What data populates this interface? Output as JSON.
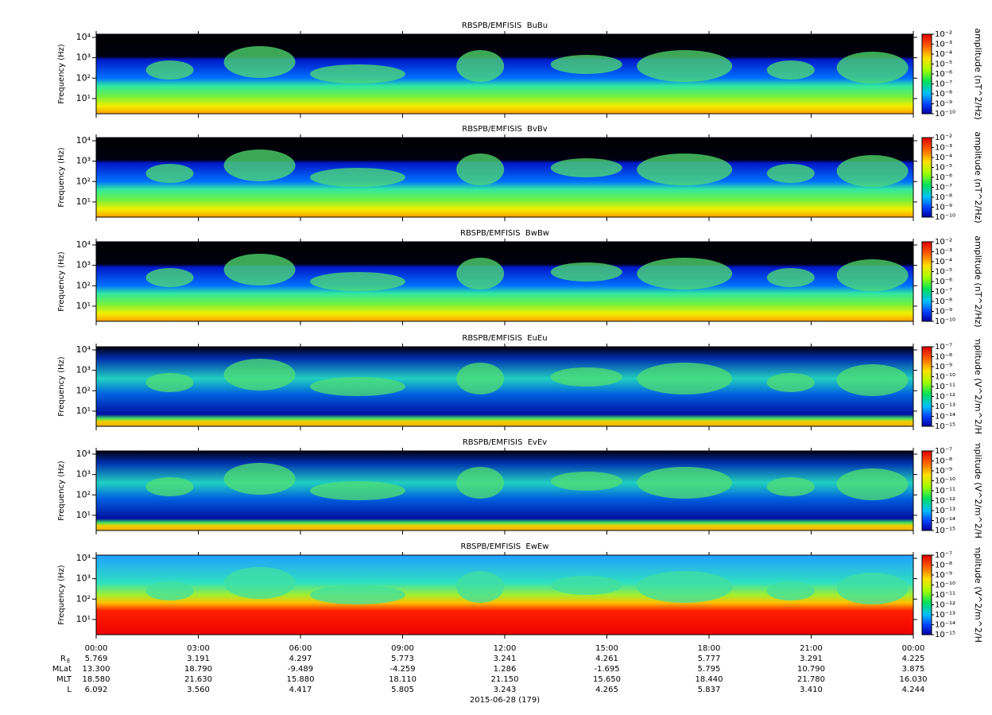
{
  "chart_data": [
    {
      "type": "spectrogram",
      "title": "RBSPB/EMFISIS  BuBu",
      "ylabel": "Frequency (Hz)",
      "yscale": "log",
      "ylim": [
        1.8,
        14300
      ],
      "yticks": [
        {
          "value": 10,
          "label": "10¹"
        },
        {
          "value": 100,
          "label": "10²"
        },
        {
          "value": 1000,
          "label": "10³"
        },
        {
          "value": 10000,
          "label": "10⁴"
        }
      ],
      "colorbar": {
        "label": "amplitude (nT^2/Hz)",
        "zscale": "log",
        "zlim": [
          1e-10,
          0.01
        ],
        "zticks": [
          {
            "value": 0.01,
            "label": "10⁻²"
          },
          {
            "value": 0.001,
            "label": "10⁻³"
          },
          {
            "value": 0.0001,
            "label": "10⁻⁴"
          },
          {
            "value": 1e-05,
            "label": "10⁻⁵"
          },
          {
            "value": 1e-06,
            "label": "10⁻⁶"
          },
          {
            "value": 1e-07,
            "label": "10⁻⁷"
          },
          {
            "value": 1e-08,
            "label": "10⁻⁸"
          },
          {
            "value": 1e-09,
            "label": "10⁻⁹"
          },
          {
            "value": 1e-10,
            "label": "10⁻¹⁰"
          }
        ]
      }
    },
    {
      "type": "spectrogram",
      "title": "RBSPB/EMFISIS  BvBv",
      "ylabel": "Frequency (Hz)",
      "yscale": "log",
      "ylim": [
        1.8,
        14300
      ],
      "yticks": [
        {
          "value": 10,
          "label": "10¹"
        },
        {
          "value": 100,
          "label": "10²"
        },
        {
          "value": 1000,
          "label": "10³"
        },
        {
          "value": 10000,
          "label": "10⁴"
        }
      ],
      "colorbar": {
        "label": "amplitude (nT^2/Hz)",
        "zscale": "log",
        "zlim": [
          1e-10,
          0.01
        ],
        "zticks": [
          {
            "value": 0.01,
            "label": "10⁻²"
          },
          {
            "value": 0.001,
            "label": "10⁻³"
          },
          {
            "value": 0.0001,
            "label": "10⁻⁴"
          },
          {
            "value": 1e-05,
            "label": "10⁻⁵"
          },
          {
            "value": 1e-06,
            "label": "10⁻⁶"
          },
          {
            "value": 1e-07,
            "label": "10⁻⁷"
          },
          {
            "value": 1e-08,
            "label": "10⁻⁸"
          },
          {
            "value": 1e-09,
            "label": "10⁻⁹"
          },
          {
            "value": 1e-10,
            "label": "10⁻¹⁰"
          }
        ]
      }
    },
    {
      "type": "spectrogram",
      "title": "RBSPB/EMFISIS  BwBw",
      "ylabel": "Frequency (Hz)",
      "yscale": "log",
      "ylim": [
        1.8,
        14300
      ],
      "yticks": [
        {
          "value": 10,
          "label": "10¹"
        },
        {
          "value": 100,
          "label": "10²"
        },
        {
          "value": 1000,
          "label": "10³"
        },
        {
          "value": 10000,
          "label": "10⁴"
        }
      ],
      "colorbar": {
        "label": "amplitude (nT^2/Hz)",
        "zscale": "log",
        "zlim": [
          1e-10,
          0.01
        ],
        "zticks": [
          {
            "value": 0.01,
            "label": "10⁻²"
          },
          {
            "value": 0.001,
            "label": "10⁻³"
          },
          {
            "value": 0.0001,
            "label": "10⁻⁴"
          },
          {
            "value": 1e-05,
            "label": "10⁻⁵"
          },
          {
            "value": 1e-06,
            "label": "10⁻⁶"
          },
          {
            "value": 1e-07,
            "label": "10⁻⁷"
          },
          {
            "value": 1e-08,
            "label": "10⁻⁸"
          },
          {
            "value": 1e-09,
            "label": "10⁻⁹"
          },
          {
            "value": 1e-10,
            "label": "10⁻¹⁰"
          }
        ]
      }
    },
    {
      "type": "spectrogram",
      "title": "RBSPB/EMFISIS  EuEu",
      "ylabel": "Frequency (Hz)",
      "yscale": "log",
      "ylim": [
        1.8,
        14300
      ],
      "yticks": [
        {
          "value": 10,
          "label": "10¹"
        },
        {
          "value": 100,
          "label": "10²"
        },
        {
          "value": 1000,
          "label": "10³"
        },
        {
          "value": 10000,
          "label": "10⁴"
        }
      ],
      "colorbar": {
        "label": "amplitude (V^2/m^2/Hz)",
        "zscale": "log",
        "zlim": [
          1e-15,
          1e-07
        ],
        "zticks": [
          {
            "value": 1e-07,
            "label": "10⁻⁷"
          },
          {
            "value": 1e-08,
            "label": "10⁻⁸"
          },
          {
            "value": 1e-09,
            "label": "10⁻⁹"
          },
          {
            "value": 1e-10,
            "label": "10⁻¹⁰"
          },
          {
            "value": 1e-11,
            "label": "10⁻¹¹"
          },
          {
            "value": 1e-12,
            "label": "10⁻¹²"
          },
          {
            "value": 1e-13,
            "label": "10⁻¹³"
          },
          {
            "value": 1e-14,
            "label": "10⁻¹⁴"
          },
          {
            "value": 1e-15,
            "label": "10⁻¹⁵"
          }
        ]
      }
    },
    {
      "type": "spectrogram",
      "title": "RBSPB/EMFISIS  EvEv",
      "ylabel": "Frequency (Hz)",
      "yscale": "log",
      "ylim": [
        1.8,
        14300
      ],
      "yticks": [
        {
          "value": 10,
          "label": "10¹"
        },
        {
          "value": 100,
          "label": "10²"
        },
        {
          "value": 1000,
          "label": "10³"
        },
        {
          "value": 10000,
          "label": "10⁴"
        }
      ],
      "colorbar": {
        "label": "amplitude (V^2/m^2/Hz)",
        "zscale": "log",
        "zlim": [
          1e-15,
          1e-07
        ],
        "zticks": [
          {
            "value": 1e-07,
            "label": "10⁻⁷"
          },
          {
            "value": 1e-08,
            "label": "10⁻⁸"
          },
          {
            "value": 1e-09,
            "label": "10⁻⁹"
          },
          {
            "value": 1e-10,
            "label": "10⁻¹⁰"
          },
          {
            "value": 1e-11,
            "label": "10⁻¹¹"
          },
          {
            "value": 1e-12,
            "label": "10⁻¹²"
          },
          {
            "value": 1e-13,
            "label": "10⁻¹³"
          },
          {
            "value": 1e-14,
            "label": "10⁻¹⁴"
          },
          {
            "value": 1e-15,
            "label": "10⁻¹⁵"
          }
        ]
      }
    },
    {
      "type": "spectrogram",
      "title": "RBSPB/EMFISIS  EwEw",
      "ylabel": "Frequency (Hz)",
      "yscale": "log",
      "ylim": [
        1.8,
        14300
      ],
      "yticks": [
        {
          "value": 10,
          "label": "10¹"
        },
        {
          "value": 100,
          "label": "10²"
        },
        {
          "value": 1000,
          "label": "10³"
        },
        {
          "value": 10000,
          "label": "10⁴"
        }
      ],
      "colorbar": {
        "label": "amplitude (V^2/m^2/Hz)",
        "zscale": "log",
        "zlim": [
          1e-15,
          1e-07
        ],
        "zticks": [
          {
            "value": 1e-07,
            "label": "10⁻⁷"
          },
          {
            "value": 1e-08,
            "label": "10⁻⁸"
          },
          {
            "value": 1e-09,
            "label": "10⁻⁹"
          },
          {
            "value": 1e-10,
            "label": "10⁻¹⁰"
          },
          {
            "value": 1e-11,
            "label": "10⁻¹¹"
          },
          {
            "value": 1e-12,
            "label": "10⁻¹²"
          },
          {
            "value": 1e-13,
            "label": "10⁻¹³"
          },
          {
            "value": 1e-14,
            "label": "10⁻¹⁴"
          },
          {
            "value": 1e-15,
            "label": "10⁻¹⁵"
          }
        ]
      }
    }
  ],
  "time_axis": {
    "xlim": [
      0,
      24
    ],
    "xticks": [
      {
        "value": 0,
        "label": "00:00"
      },
      {
        "value": 3,
        "label": "03:00"
      },
      {
        "value": 6,
        "label": "06:00"
      },
      {
        "value": 9,
        "label": "09:00"
      },
      {
        "value": 12,
        "label": "12:00"
      },
      {
        "value": 15,
        "label": "15:00"
      },
      {
        "value": 18,
        "label": "18:00"
      },
      {
        "value": 21,
        "label": "21:00"
      },
      {
        "value": 24,
        "label": "00:00"
      }
    ],
    "rows": [
      {
        "label": "R",
        "sub": "E",
        "values": [
          "5.769",
          "3.191",
          "4.297",
          "5.773",
          "3.241",
          "4.261",
          "5.777",
          "3.291",
          "4.225"
        ]
      },
      {
        "label": "MLat",
        "values": [
          "13.300",
          "18.790",
          "-9.489",
          "-4.259",
          "1.286",
          "-1.695",
          "5.795",
          "10.790",
          "3.875"
        ]
      },
      {
        "label": "MLT",
        "values": [
          "18.580",
          "21.630",
          "15.880",
          "18.110",
          "21.150",
          "15.650",
          "18.440",
          "21.780",
          "16.030"
        ]
      },
      {
        "label": "L",
        "values": [
          "6.092",
          "3.560",
          "4.417",
          "5.805",
          "3.243",
          "4.265",
          "5.837",
          "3.410",
          "4.244"
        ]
      }
    ],
    "date": "2015-06-28 (179)"
  }
}
